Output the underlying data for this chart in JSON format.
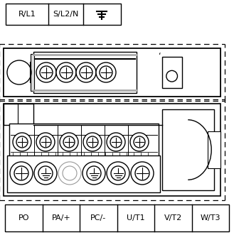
{
  "bg_color": "#ffffff",
  "top_labels": [
    "R/L1",
    "S/L2/N"
  ],
  "bottom_labels": [
    "PO",
    "PA/+",
    "PC/-",
    "U/T1",
    "V/T2",
    "W/T3"
  ],
  "figsize": [
    3.29,
    3.31
  ],
  "dpi": 100
}
